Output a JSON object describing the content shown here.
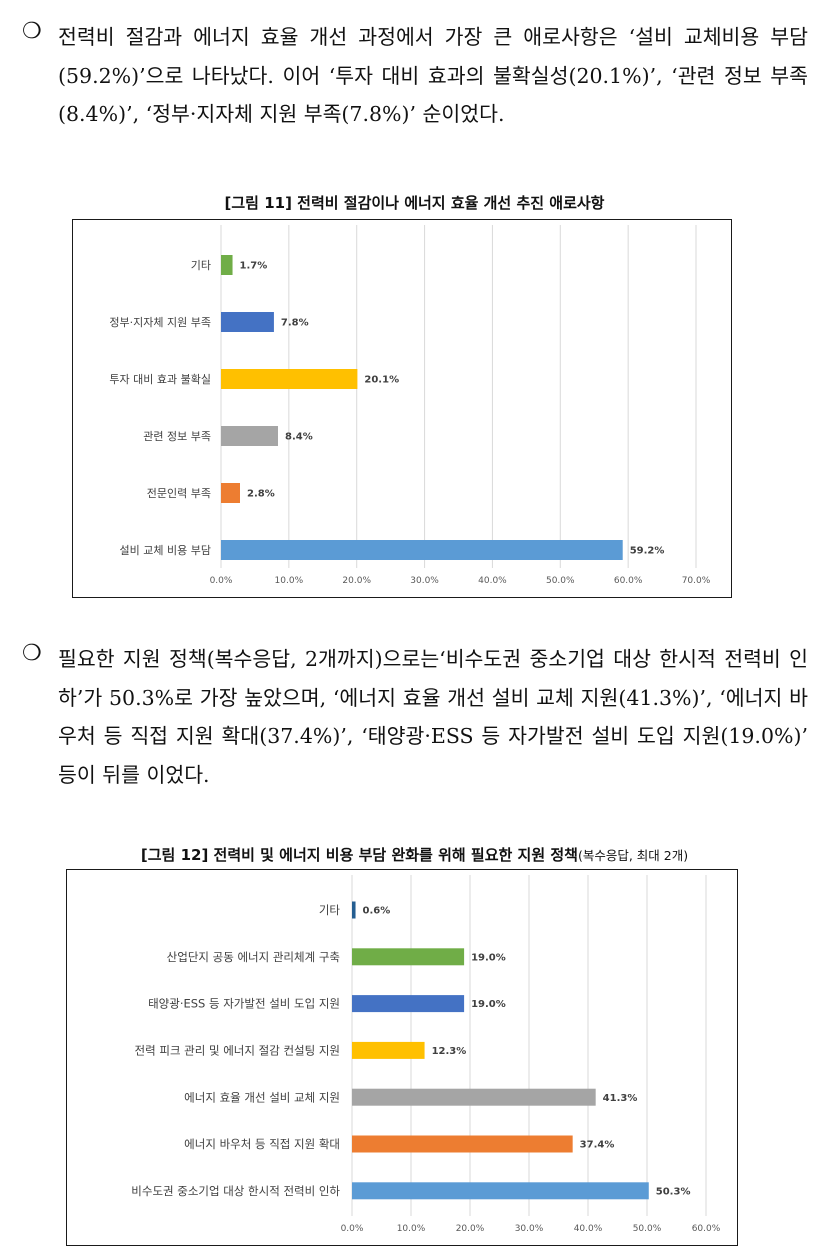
{
  "paragraph1": {
    "bullet": "❍",
    "text": "전력비 절감과 에너지 효율 개선 과정에서 가장 큰 애로사항은 ‘설비 교체비용 부담(59.2%)’으로 나타났다. 이어 ‘투자 대비 효과의 불확실성(20.1%)’, ‘관련 정보 부족(8.4%)’, ‘정부·지자체 지원 부족(7.8%)’ 순이었다."
  },
  "paragraph2": {
    "bullet": "❍",
    "text": "필요한 지원 정책(복수응답, 2개까지)으로는‘비수도권 중소기업 대상 한시적 전력비 인하’가 50.3%로 가장 높았으며, ‘에너지 효율 개선 설비 교체 지원(41.3%)’, ‘에너지 바우처 등 직접 지원 확대(37.4%)’, ‘태양광·ESS 등 자가발전 설비 도입 지원(19.0%)’ 등이 뒤를 이었다."
  },
  "figure11": {
    "caption": "[그림 11] 전력비 절감이나 에너지 효율 개선 추진 애로사항"
  },
  "figure12": {
    "caption": "[그림 12] 전력비 및 에너지 비용 부담 완화를 위해 필요한 지원 정책",
    "caption_sub": "(복수응답, 최대 2개)"
  },
  "chart_data": [
    {
      "type": "bar",
      "orientation": "horizontal",
      "title": "[그림 11] 전력비 절감이나 에너지 효율 개선 추진 애로사항",
      "categories": [
        "기타",
        "정부·지자체 지원 부족",
        "투자 대비 효과 불확실",
        "관련 정보 부족",
        "전문인력 부족",
        "설비 교체 비용 부담"
      ],
      "values": [
        1.7,
        7.8,
        20.1,
        8.4,
        2.8,
        59.2
      ],
      "value_labels": [
        "1.7%",
        "7.8%",
        "20.1%",
        "8.4%",
        "2.8%",
        "59.2%"
      ],
      "colors": [
        "#70ad47",
        "#4472c4",
        "#ffc000",
        "#a5a5a5",
        "#ed7d31",
        "#5b9bd5"
      ],
      "xlim": [
        0,
        70
      ],
      "xticks": [
        "0.0%",
        "10.0%",
        "20.0%",
        "30.0%",
        "40.0%",
        "50.0%",
        "60.0%",
        "70.0%"
      ],
      "grid": true,
      "legend": false
    },
    {
      "type": "bar",
      "orientation": "horizontal",
      "title": "[그림 12] 전력비 및 에너지 비용 부담 완화를 위해 필요한 지원 정책(복수응답, 최대 2개)",
      "categories": [
        "기타",
        "산업단지 공동 에너지 관리체계 구축",
        "태양광·ESS 등 자가발전 설비 도입 지원",
        "전력 피크 관리 및 에너지 절감 컨설팅 지원",
        "에너지 효율 개선 설비 교체 지원",
        "에너지 바우처 등 직접 지원 확대",
        "비수도권 중소기업 대상 한시적 전력비 인하"
      ],
      "values": [
        0.6,
        19.0,
        19.0,
        12.3,
        41.3,
        37.4,
        50.3
      ],
      "value_labels": [
        "0.6%",
        "19.0%",
        "19.0%",
        "12.3%",
        "41.3%",
        "37.4%",
        "50.3%"
      ],
      "colors": [
        "#255e91",
        "#70ad47",
        "#4472c4",
        "#ffc000",
        "#a5a5a5",
        "#ed7d31",
        "#5b9bd5"
      ],
      "xlim": [
        0,
        60
      ],
      "xticks": [
        "0.0%",
        "10.0%",
        "20.0%",
        "30.0%",
        "40.0%",
        "50.0%",
        "60.0%"
      ],
      "grid": true,
      "legend": false
    }
  ]
}
